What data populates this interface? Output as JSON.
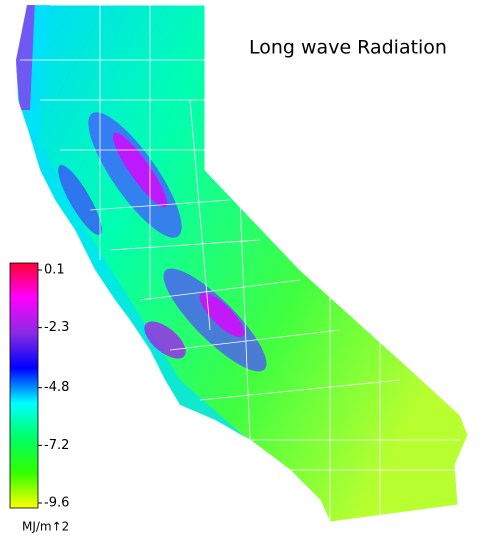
{
  "title": "Long wave Radiation",
  "colorbar": {
    "lim": [
      -9.6,
      0.1
    ],
    "ticks": [
      0.1,
      -2.3,
      -4.8,
      -7.2,
      -9.6
    ],
    "unit": "MJ/m↑2",
    "colors": [
      "#ff0033",
      "#ff00ff",
      "#8a2be2",
      "#0000ff",
      "#00ffff",
      "#00ff66",
      "#33ff00",
      "#ffff00"
    ]
  }
}
